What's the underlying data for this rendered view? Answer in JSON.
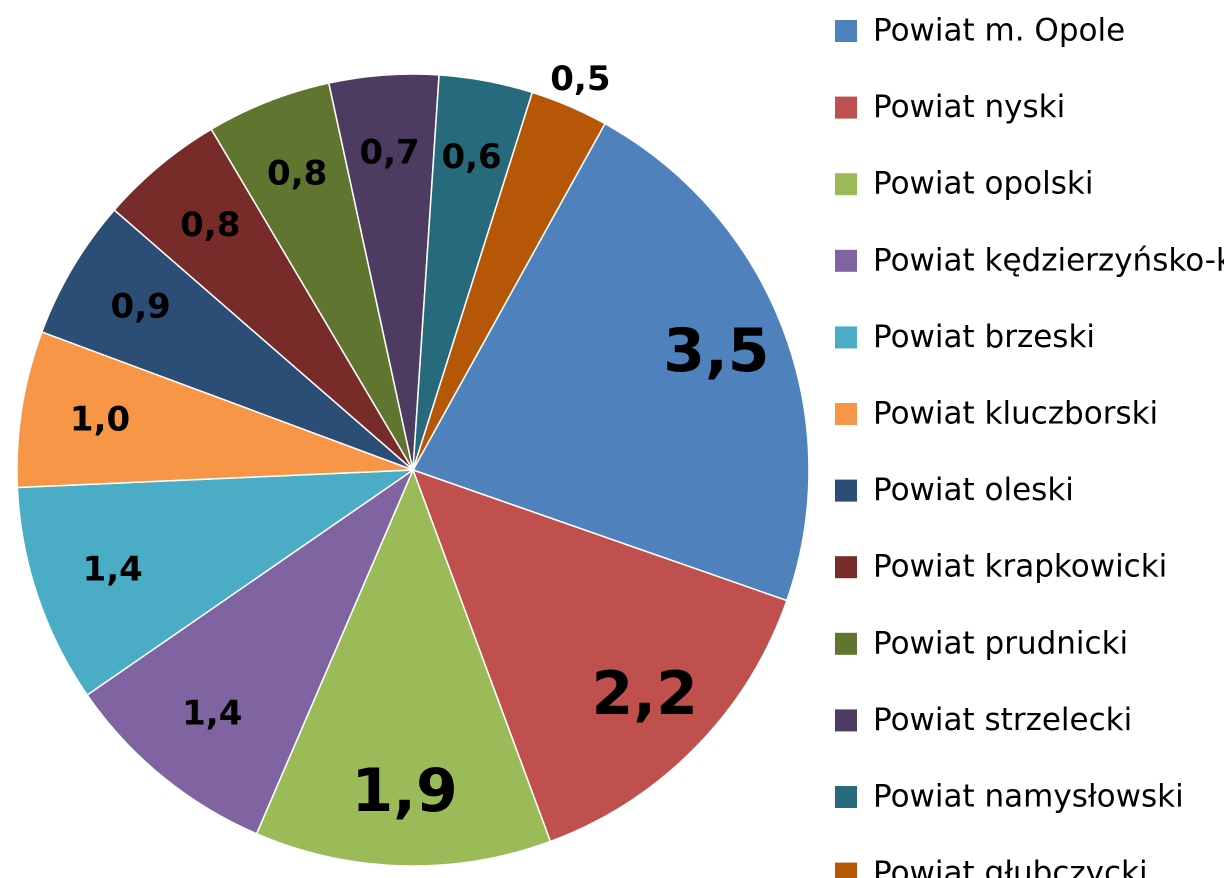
{
  "chart_data": {
    "type": "pie",
    "categories": [
      "Powiat m. Opole",
      "Powiat nyski",
      "Powiat opolski",
      "Powiat kędzierzyńsko-kozielski",
      "Powiat brzeski",
      "Powiat kluczborski",
      "Powiat oleski",
      "Powiat krapkowicki",
      "Powiat prudnicki",
      "Powiat strzelecki",
      "Powiat namysłowski",
      "Powiat głubczycki"
    ],
    "values": [
      3.5,
      2.2,
      1.9,
      1.4,
      1.4,
      1.0,
      0.9,
      0.8,
      0.8,
      0.7,
      0.6,
      0.5
    ],
    "value_labels": [
      "3,5",
      "2,2",
      "1,9",
      "1,4",
      "1,4",
      "1,0",
      "0,9",
      "0,8",
      "0,8",
      "0,7",
      "0,6",
      "0,5"
    ],
    "colors": [
      "#4f81bd",
      "#c0504d",
      "#9bbb59",
      "#8064a2",
      "#4bacc6",
      "#f79646",
      "#2c4d75",
      "#772c2a",
      "#5f7530",
      "#4d3b62",
      "#276a7c",
      "#b65708"
    ],
    "legend": "right"
  }
}
